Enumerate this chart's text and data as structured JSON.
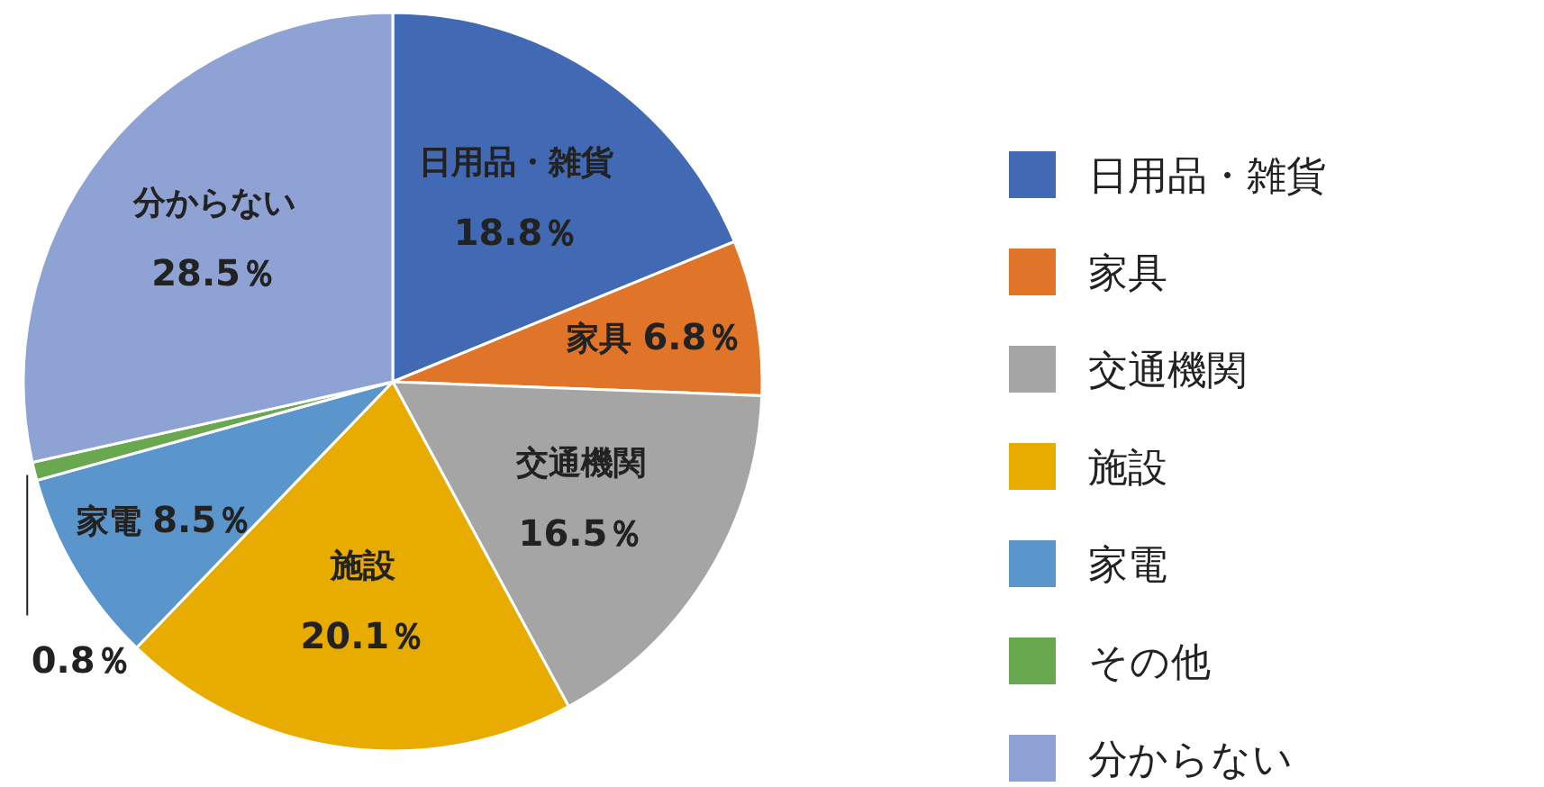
{
  "chart_data": {
    "type": "pie",
    "categories": [
      "日用品・雑貨",
      "家具",
      "交通機関",
      "施設",
      "家電",
      "その他",
      "分からない"
    ],
    "values": [
      18.8,
      6.8,
      16.5,
      20.1,
      8.5,
      0.8,
      28.5
    ],
    "value_labels": [
      "18.8％",
      "6.8％",
      "16.5％",
      "20.1％",
      "8.5％",
      "0.8％",
      "28.5％"
    ],
    "colors": [
      "#4169b4",
      "#e07428",
      "#a5a5a5",
      "#e8ab00",
      "#5a96cc",
      "#6aa84f",
      "#8fa2d4"
    ],
    "legend": "right"
  }
}
